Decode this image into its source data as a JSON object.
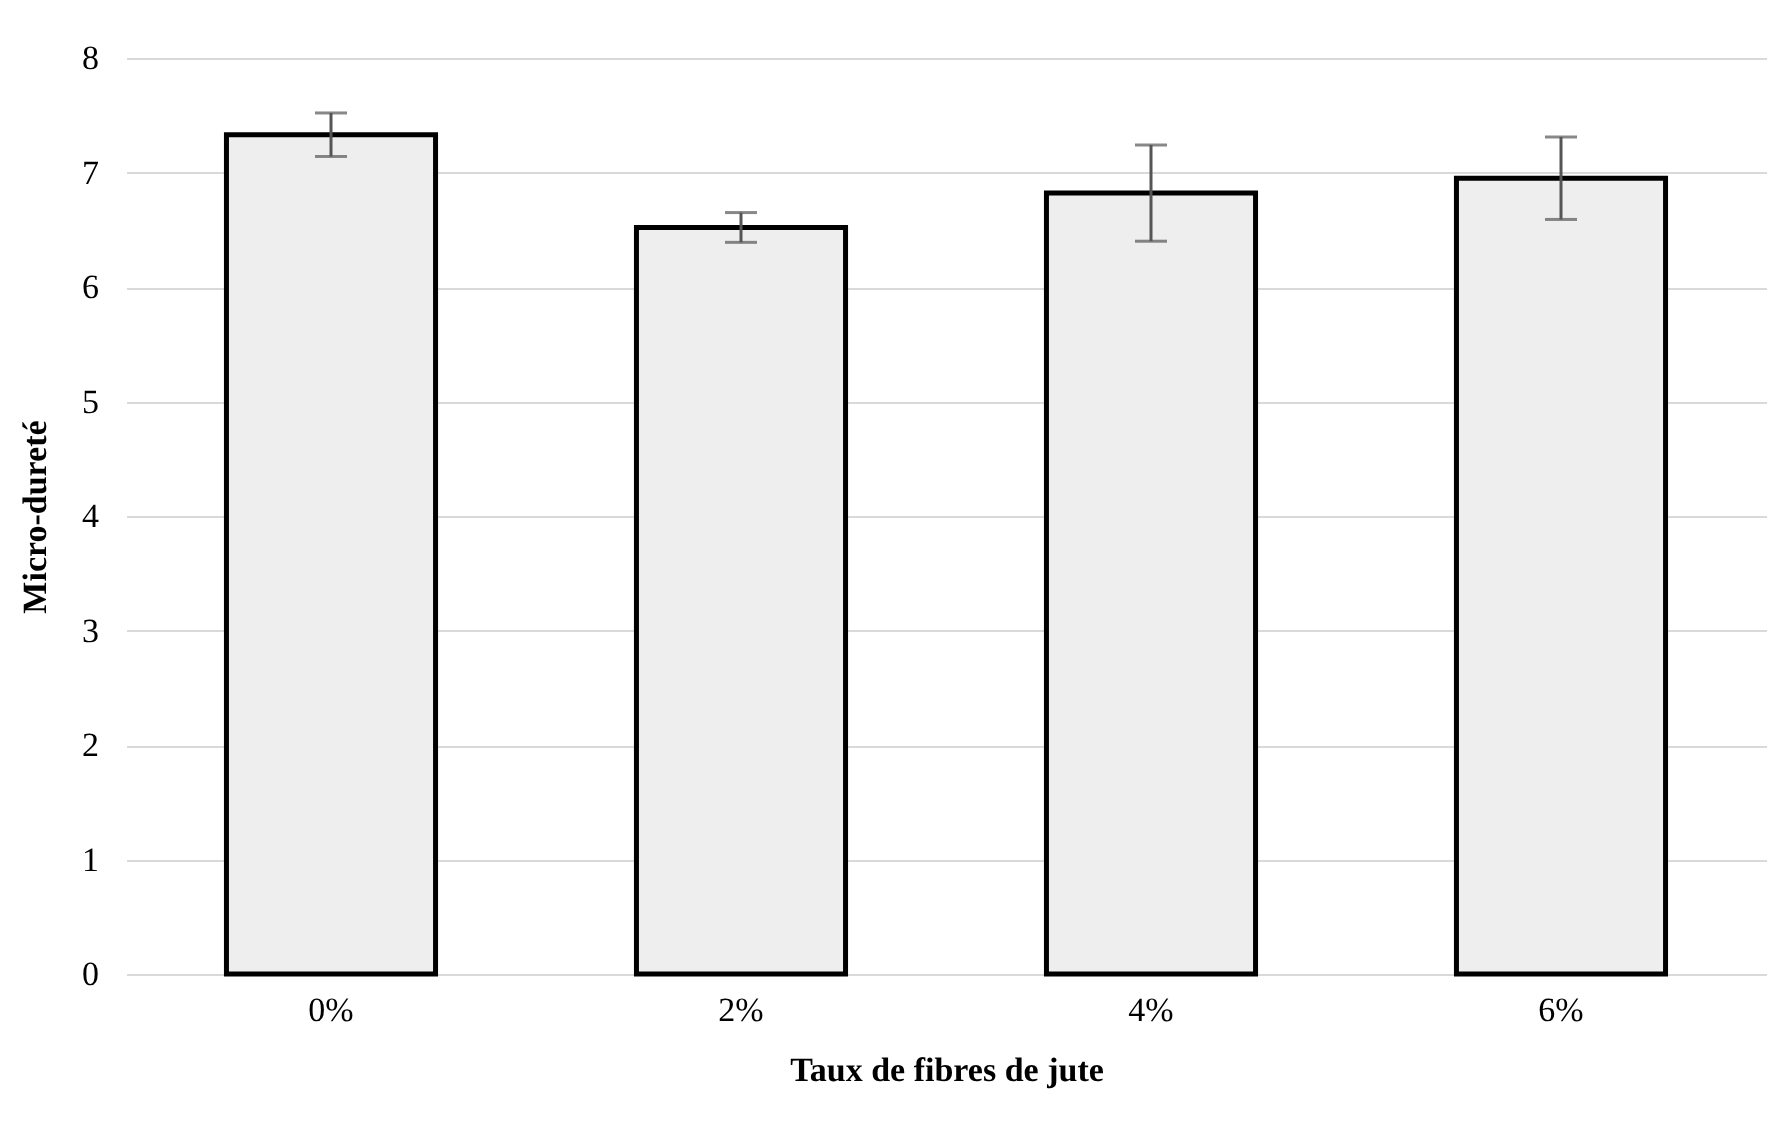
{
  "chart_data": {
    "type": "bar",
    "xlabel": "Taux de fibres de jute",
    "ylabel": "Micro-dureté",
    "categories": [
      "0%",
      "2%",
      "4%",
      "6%"
    ],
    "values": [
      7.33,
      6.52,
      6.82,
      6.95
    ],
    "errors": [
      0.19,
      0.13,
      0.42,
      0.36
    ],
    "color": "#eeeeee",
    "ylim": [
      0,
      8
    ],
    "yticks": [
      0,
      1,
      2,
      3,
      4,
      5,
      6,
      7,
      8
    ],
    "grid": "y"
  }
}
